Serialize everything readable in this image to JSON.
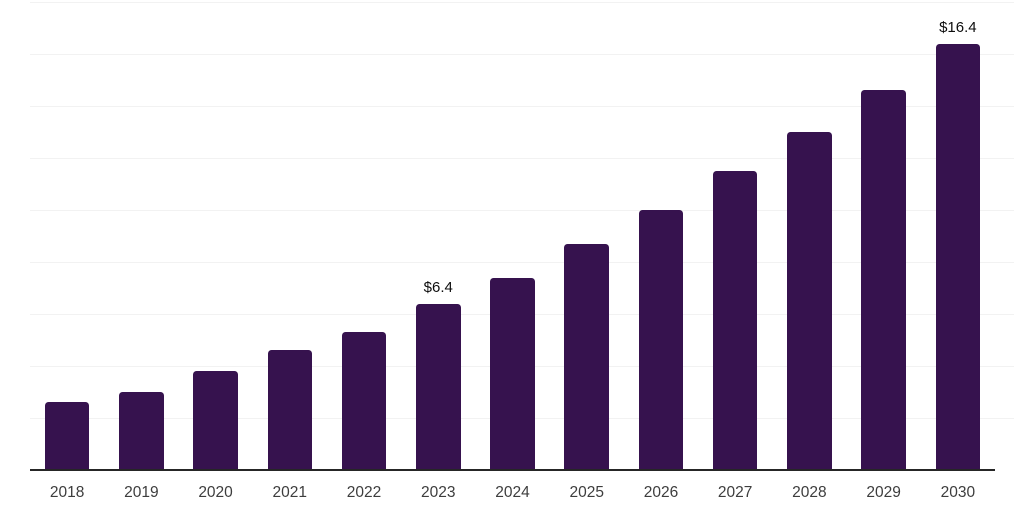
{
  "chart_data": {
    "type": "bar",
    "title": "",
    "xlabel": "",
    "ylabel": "",
    "categories": [
      "2018",
      "2019",
      "2020",
      "2021",
      "2022",
      "2023",
      "2024",
      "2025",
      "2026",
      "2027",
      "2028",
      "2029",
      "2030"
    ],
    "values": [
      2.6,
      3.0,
      3.8,
      4.6,
      5.3,
      6.4,
      7.4,
      8.7,
      10.0,
      11.5,
      13.0,
      14.6,
      16.4
    ],
    "annotations": [
      {
        "category": "2023",
        "label": "$6.4"
      },
      {
        "category": "2030",
        "label": "$16.4"
      }
    ],
    "ylim": [
      0,
      18
    ],
    "gridline_step": 2,
    "grid": "horizontal",
    "legend_position": "none",
    "colors": {
      "bar": "#36124E",
      "axis": "#262626",
      "gridline": "#F2F2F2",
      "tick_label": "#3D3D3D",
      "data_label": "#0D0D0D",
      "background": "#FFFFFF"
    }
  }
}
